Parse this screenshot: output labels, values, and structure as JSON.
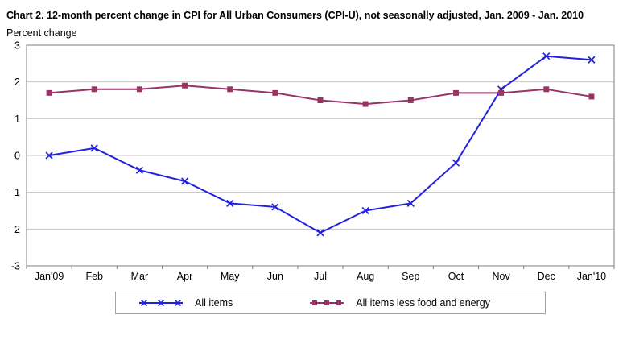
{
  "chart_data": {
    "type": "line",
    "title": "Chart 2. 12-month percent change in CPI for All Urban Consumers (CPI-U), not seasonally adjusted, Jan. 2009 - Jan. 2010",
    "ylabel": "Percent change",
    "xlabel": "",
    "categories": [
      "Jan'09",
      "Feb",
      "Mar",
      "Apr",
      "May",
      "Jun",
      "Jul",
      "Aug",
      "Sep",
      "Oct",
      "Nov",
      "Dec",
      "Jan'10"
    ],
    "series": [
      {
        "name": "All items",
        "marker": "x",
        "color": "#2222DD",
        "values": [
          0.0,
          0.2,
          -0.4,
          -0.7,
          -1.3,
          -1.4,
          -2.1,
          -1.5,
          -1.3,
          -0.2,
          1.8,
          2.7,
          2.6
        ]
      },
      {
        "name": "All items less food and energy",
        "marker": "square",
        "color": "#993366",
        "values": [
          1.7,
          1.8,
          1.8,
          1.9,
          1.8,
          1.7,
          1.5,
          1.4,
          1.5,
          1.7,
          1.7,
          1.8,
          1.6
        ]
      }
    ],
    "ylim": [
      -3,
      3
    ],
    "ytick_step": 1,
    "grid": true,
    "legend_position": "bottom"
  },
  "colors": {
    "grid": "#c4c4c4",
    "axis": "#7f7f7f",
    "background": "#ffffff",
    "text": "#000000"
  }
}
